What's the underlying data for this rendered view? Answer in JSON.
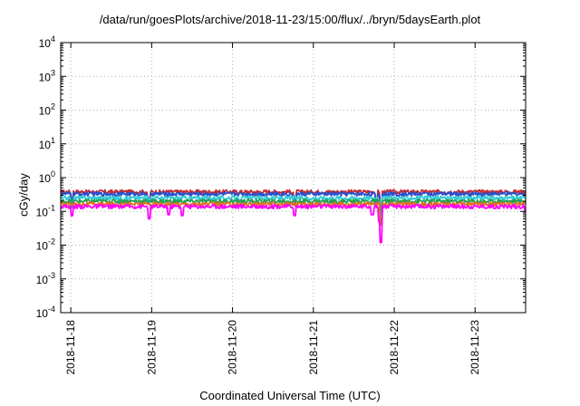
{
  "chart_data": {
    "type": "line",
    "title": "/data/run/goesPlots/archive/2018-11-23/15:00/flux/../bryn/5daysEarth.plot",
    "xlabel": "Coordinated Universal Time (UTC)",
    "ylabel": "cGy/day",
    "yscale": "log",
    "ylim": [
      0.0001,
      10000
    ],
    "y_ticks": [
      {
        "base": "10",
        "exp": "-4"
      },
      {
        "base": "10",
        "exp": "-3"
      },
      {
        "base": "10",
        "exp": "-2"
      },
      {
        "base": "10",
        "exp": "-1"
      },
      {
        "base": "10",
        "exp": "0"
      },
      {
        "base": "10",
        "exp": "1"
      },
      {
        "base": "10",
        "exp": "2"
      },
      {
        "base": "10",
        "exp": "3"
      },
      {
        "base": "10",
        "exp": "4"
      }
    ],
    "xlim": [
      "2018-11-17 21:00",
      "2018-11-23 15:00"
    ],
    "x_ticks": [
      "2018-11-18",
      "2018-11-19",
      "2018-11-20",
      "2018-11-21",
      "2018-11-22",
      "2018-11-23"
    ],
    "grid": true,
    "series": [
      {
        "color": "#cc2a2a",
        "baseline": 0.38,
        "dips": [
          {
            "x": "2018-11-18 00:25",
            "y": 0.24
          },
          {
            "x": "2018-11-18 23:10",
            "y": 0.25
          },
          {
            "x": "2018-11-20 18:30",
            "y": 0.2
          },
          {
            "x": "2018-11-21 18:40",
            "y": 0.22
          },
          {
            "x": "2018-11-21 20:00",
            "y": 0.12
          }
        ]
      },
      {
        "color": "#2a4fcc",
        "baseline": 0.33,
        "dips": [
          {
            "x": "2018-11-18 00:25",
            "y": 0.2
          },
          {
            "x": "2018-11-18 23:10",
            "y": 0.21
          },
          {
            "x": "2018-11-20 18:30",
            "y": 0.16
          },
          {
            "x": "2018-11-21 18:40",
            "y": 0.18
          },
          {
            "x": "2018-11-21 20:00",
            "y": 0.09
          }
        ]
      },
      {
        "color": "#33ccd6",
        "baseline": 0.25,
        "dips": [
          {
            "x": "2018-11-18 00:25",
            "y": 0.16
          },
          {
            "x": "2018-11-21 20:00",
            "y": 0.07
          }
        ]
      },
      {
        "color": "#22a052",
        "baseline": 0.2,
        "dips": [
          {
            "x": "2018-11-18 00:25",
            "y": 0.13
          },
          {
            "x": "2018-11-21 20:00",
            "y": 0.05
          }
        ]
      },
      {
        "color": "#e07020",
        "baseline": 0.165,
        "dips": [
          {
            "x": "2018-11-21 20:00",
            "y": 0.04
          }
        ]
      },
      {
        "color": "#ff00ff",
        "baseline": 0.14,
        "dips": [
          {
            "x": "2018-11-18 00:25",
            "y": 0.075
          },
          {
            "x": "2018-11-18 23:20",
            "y": 0.06
          },
          {
            "x": "2018-11-19 05:00",
            "y": 0.08
          },
          {
            "x": "2018-11-19 09:00",
            "y": 0.075
          },
          {
            "x": "2018-11-20 18:30",
            "y": 0.075
          },
          {
            "x": "2018-11-21 17:30",
            "y": 0.08
          },
          {
            "x": "2018-11-21 19:40",
            "y": 0.05
          },
          {
            "x": "2018-11-21 20:00",
            "y": 0.012
          },
          {
            "x": "2018-11-23 15:00",
            "y": 0.1
          }
        ]
      }
    ]
  }
}
